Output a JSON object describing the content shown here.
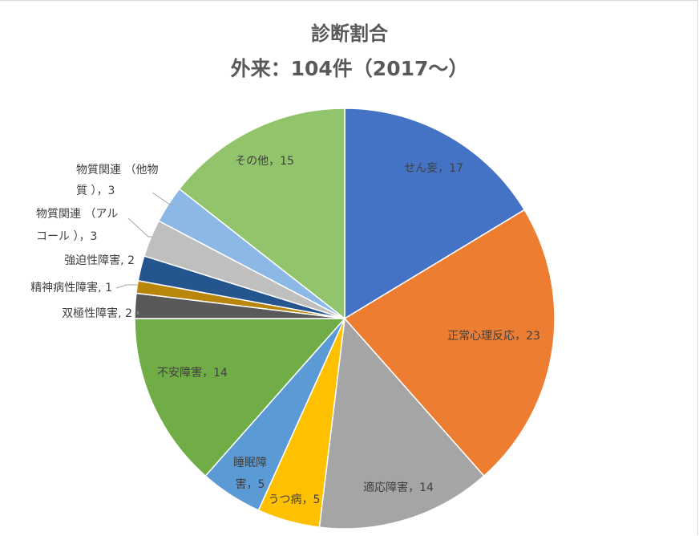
{
  "chart_data": {
    "type": "pie",
    "title": "診断割合",
    "subtitle": "外来：104件（2017～）",
    "slices": [
      {
        "label": "せん妄",
        "value": 17,
        "color": "#4472C4",
        "text": "せん妄，17"
      },
      {
        "label": "正常心理反応",
        "value": 23,
        "color": "#ED7D31",
        "text": "正常心理反応，23"
      },
      {
        "label": "適応障害",
        "value": 14,
        "color": "#A5A5A5",
        "text": "適応障害，14"
      },
      {
        "label": "うつ病",
        "value": 5,
        "color": "#FFC000",
        "text": "うつ病，5"
      },
      {
        "label": "睡眠障害",
        "value": 5,
        "color": "#5B9BD5",
        "text": "睡眠障害，5",
        "lines": [
          "睡眠障",
          "害，5"
        ]
      },
      {
        "label": "不安障害",
        "value": 14,
        "color": "#70AD47",
        "text": "不安障害，14"
      },
      {
        "label": "双極性障害",
        "value": 2,
        "color": "#595959",
        "text": "双極性障害, 2"
      },
      {
        "label": "精神病性障害",
        "value": 1,
        "color": "#B8860B",
        "text": "精神病性障害, 1"
      },
      {
        "label": "強迫性障害",
        "value": 2,
        "color": "#24558F",
        "text": "強迫性障害, 2"
      },
      {
        "label": "物質関連（アルコール）",
        "value": 3,
        "color": "#BFBFBF",
        "text": "物質関連 （アルコール ）, 3",
        "lines": [
          "物質関連 （アル",
          "コール ），3"
        ]
      },
      {
        "label": "物質関連（他物質）",
        "value": 3,
        "color": "#8CB8E6",
        "text": "物質関連 （他物質 ）, 3",
        "lines": [
          "物質関連 （他物",
          "質 ），3"
        ]
      },
      {
        "label": "その他",
        "value": 15,
        "color": "#92C46C",
        "text": "その他，15"
      }
    ]
  }
}
